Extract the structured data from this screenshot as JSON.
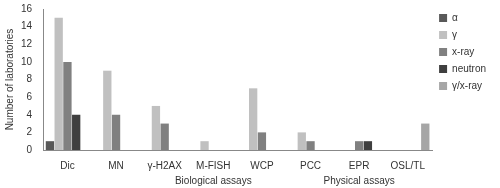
{
  "chart_data": {
    "type": "bar",
    "y_label": "Number of laboratories",
    "categories": [
      "Dic",
      "MN",
      "γ-H2AX",
      "M-FISH",
      "WCP",
      "PCC",
      "EPR",
      "OSL/TL"
    ],
    "series": [
      {
        "name": "α",
        "color": "#595959",
        "values": [
          1,
          0,
          0,
          0,
          0,
          0,
          0,
          0
        ]
      },
      {
        "name": "γ",
        "color": "#c0c0c0",
        "values": [
          15,
          9,
          5,
          1,
          7,
          2,
          0,
          0
        ]
      },
      {
        "name": "x-ray",
        "color": "#808080",
        "values": [
          10,
          4,
          3,
          0,
          2,
          1,
          1,
          0
        ]
      },
      {
        "name": "neutron",
        "color": "#3f3f3f",
        "values": [
          4,
          0,
          0,
          0,
          0,
          0,
          1,
          0
        ]
      },
      {
        "name": "γ/x-ray",
        "color": "#a6a6a6",
        "values": [
          0,
          0,
          0,
          0,
          0,
          0,
          0,
          3
        ]
      }
    ],
    "annotations": [
      {
        "text": "Biological assays",
        "category": "M-FISH"
      },
      {
        "text": "Physical assays",
        "category": "EPR"
      }
    ],
    "ylim": [
      0,
      16
    ],
    "yticks": [
      0,
      2,
      4,
      6,
      8,
      10,
      12,
      14,
      16
    ],
    "grid": false,
    "legend": "right"
  }
}
